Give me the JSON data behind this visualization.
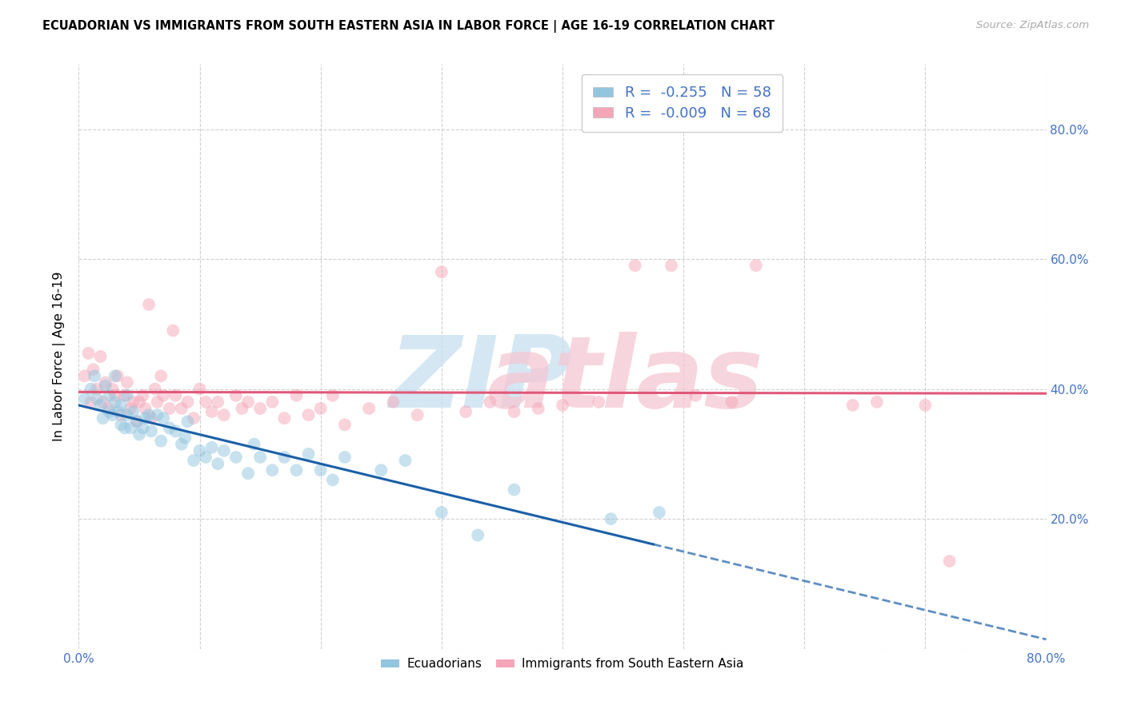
{
  "title": "ECUADORIAN VS IMMIGRANTS FROM SOUTH EASTERN ASIA IN LABOR FORCE | AGE 16-19 CORRELATION CHART",
  "source": "Source: ZipAtlas.com",
  "ylabel": "In Labor Force | Age 16-19",
  "xlim": [
    0.0,
    0.8
  ],
  "ylim": [
    0.0,
    0.9
  ],
  "y_ticks": [
    0.0,
    0.2,
    0.4,
    0.6,
    0.8
  ],
  "x_ticks": [
    0.0,
    0.1,
    0.2,
    0.3,
    0.4,
    0.5,
    0.6,
    0.7,
    0.8
  ],
  "legend_r1": "-0.255",
  "legend_n1": "58",
  "legend_r2": "-0.009",
  "legend_n2": "68",
  "color_blue": "#92c5de",
  "color_pink": "#f4a6b8",
  "color_blue_line": "#1a5fa8",
  "color_pink_line": "#e05878",
  "color_blue_text": "#4472c4",
  "marker_size": 130,
  "alpha": 0.5,
  "blue_x": [
    0.005,
    0.01,
    0.013,
    0.015,
    0.018,
    0.02,
    0.022,
    0.025,
    0.025,
    0.028,
    0.03,
    0.03,
    0.033,
    0.035,
    0.035,
    0.038,
    0.04,
    0.04,
    0.043,
    0.045,
    0.048,
    0.05,
    0.053,
    0.055,
    0.058,
    0.06,
    0.065,
    0.068,
    0.07,
    0.075,
    0.08,
    0.085,
    0.088,
    0.09,
    0.095,
    0.1,
    0.105,
    0.11,
    0.115,
    0.12,
    0.13,
    0.14,
    0.145,
    0.15,
    0.16,
    0.17,
    0.18,
    0.19,
    0.2,
    0.21,
    0.22,
    0.25,
    0.27,
    0.3,
    0.33,
    0.36,
    0.44,
    0.48
  ],
  "blue_y": [
    0.385,
    0.4,
    0.42,
    0.385,
    0.375,
    0.355,
    0.405,
    0.365,
    0.39,
    0.36,
    0.38,
    0.42,
    0.365,
    0.345,
    0.375,
    0.34,
    0.36,
    0.39,
    0.34,
    0.365,
    0.35,
    0.33,
    0.34,
    0.355,
    0.36,
    0.335,
    0.36,
    0.32,
    0.355,
    0.34,
    0.335,
    0.315,
    0.325,
    0.35,
    0.29,
    0.305,
    0.295,
    0.31,
    0.285,
    0.305,
    0.295,
    0.27,
    0.315,
    0.295,
    0.275,
    0.295,
    0.275,
    0.3,
    0.275,
    0.26,
    0.295,
    0.275,
    0.29,
    0.21,
    0.175,
    0.245,
    0.2,
    0.21
  ],
  "pink_x": [
    0.005,
    0.008,
    0.01,
    0.012,
    0.015,
    0.018,
    0.02,
    0.022,
    0.025,
    0.028,
    0.03,
    0.032,
    0.035,
    0.038,
    0.04,
    0.043,
    0.045,
    0.048,
    0.05,
    0.053,
    0.055,
    0.058,
    0.06,
    0.063,
    0.065,
    0.068,
    0.07,
    0.075,
    0.078,
    0.08,
    0.085,
    0.09,
    0.095,
    0.1,
    0.105,
    0.11,
    0.115,
    0.12,
    0.13,
    0.135,
    0.14,
    0.15,
    0.16,
    0.17,
    0.18,
    0.19,
    0.2,
    0.21,
    0.22,
    0.24,
    0.26,
    0.28,
    0.3,
    0.32,
    0.34,
    0.36,
    0.38,
    0.4,
    0.43,
    0.46,
    0.49,
    0.51,
    0.54,
    0.56,
    0.64,
    0.66,
    0.7,
    0.72
  ],
  "pink_y": [
    0.42,
    0.455,
    0.38,
    0.43,
    0.4,
    0.45,
    0.38,
    0.41,
    0.37,
    0.4,
    0.39,
    0.42,
    0.36,
    0.39,
    0.41,
    0.37,
    0.38,
    0.35,
    0.38,
    0.39,
    0.37,
    0.53,
    0.355,
    0.4,
    0.38,
    0.42,
    0.39,
    0.37,
    0.49,
    0.39,
    0.37,
    0.38,
    0.355,
    0.4,
    0.38,
    0.365,
    0.38,
    0.36,
    0.39,
    0.37,
    0.38,
    0.37,
    0.38,
    0.355,
    0.39,
    0.36,
    0.37,
    0.39,
    0.345,
    0.37,
    0.38,
    0.36,
    0.58,
    0.365,
    0.38,
    0.365,
    0.37,
    0.375,
    0.38,
    0.59,
    0.59,
    0.39,
    0.38,
    0.59,
    0.375,
    0.38,
    0.375,
    0.135
  ]
}
